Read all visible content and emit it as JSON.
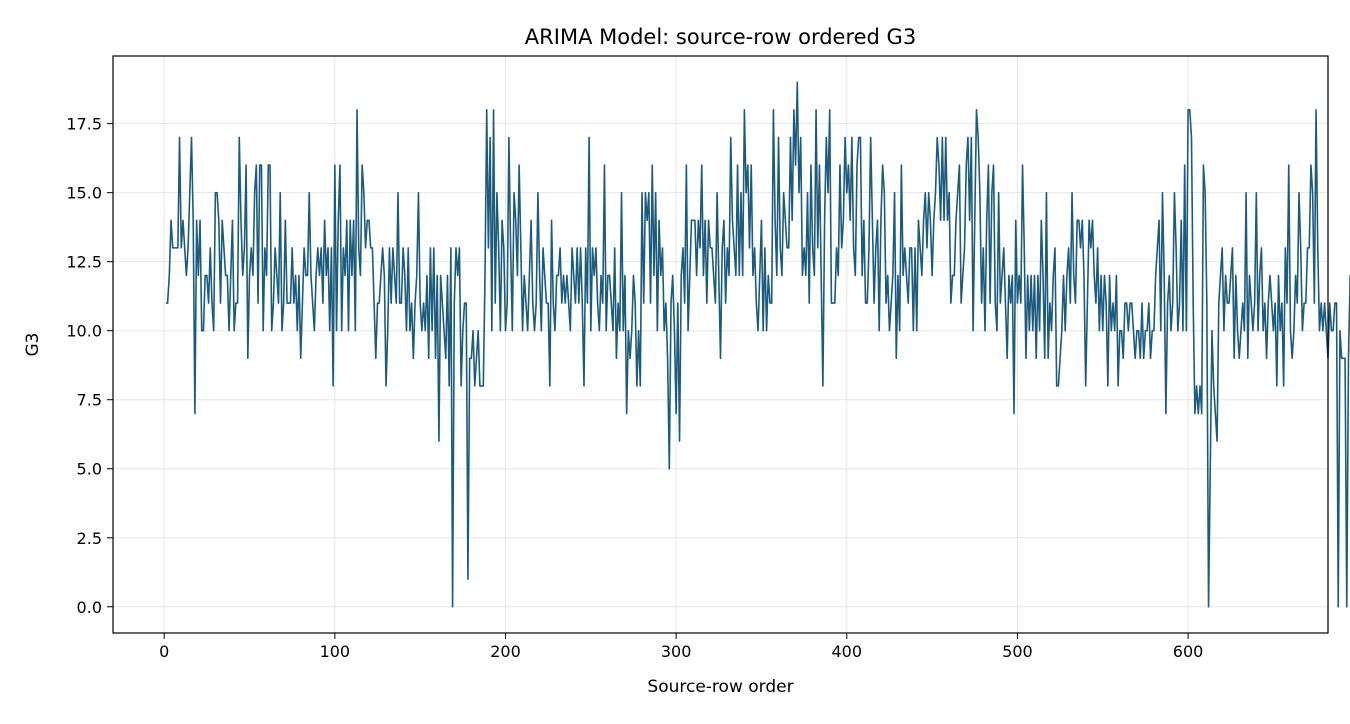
{
  "chart_data": {
    "type": "line",
    "title": "ARIMA Model: source-row ordered G3",
    "xlabel": "Source-row order",
    "ylabel": "G3",
    "xlim": [
      -30,
      682
    ],
    "ylim": [
      -0.95,
      19.95
    ],
    "xticks": [
      0,
      100,
      200,
      300,
      400,
      500,
      600
    ],
    "xtick_labels": [
      "0",
      "100",
      "200",
      "300",
      "400",
      "500",
      "600"
    ],
    "yticks": [
      0,
      2.5,
      5,
      7.5,
      10,
      12.5,
      15,
      17.5
    ],
    "ytick_labels": [
      "0.0",
      "2.5",
      "5.0",
      "7.5",
      "10.0",
      "12.5",
      "15.0",
      "17.5"
    ],
    "grid": true,
    "legend": "none",
    "line_color": "#1b5b7e",
    "series": [
      {
        "x_start": 1,
        "x_step": 1,
        "values": [
          11,
          11,
          12,
          14,
          13,
          13,
          13,
          13,
          17,
          13,
          14,
          13,
          12,
          13,
          15,
          17,
          14,
          7,
          14,
          12,
          14,
          10,
          10,
          12,
          12,
          11,
          13,
          11,
          10,
          15,
          15,
          14,
          11,
          14,
          13,
          12,
          12,
          10,
          12,
          14,
          10,
          11,
          11,
          17,
          14,
          12,
          13,
          16,
          9,
          12,
          13,
          12,
          15,
          16,
          11,
          16,
          16,
          10,
          13,
          12,
          16,
          16,
          10,
          11,
          13,
          12,
          11,
          15,
          10,
          11,
          14,
          11,
          11,
          11,
          13,
          11,
          12,
          10,
          12,
          9,
          11,
          13,
          12,
          12,
          15,
          12,
          11,
          10,
          12,
          13,
          12,
          13,
          11,
          14,
          12,
          13,
          10,
          13,
          8,
          16,
          10,
          14,
          16,
          10,
          13,
          12,
          14,
          10,
          14,
          12,
          14,
          10,
          18,
          13,
          12,
          16,
          15,
          13,
          14,
          14,
          13,
          13,
          11,
          9,
          11,
          11,
          12,
          13,
          12,
          8,
          10,
          13,
          11,
          13,
          12,
          11,
          15,
          11,
          11,
          13,
          12,
          10,
          13,
          10,
          11,
          9,
          11,
          12,
          15,
          11,
          10,
          11,
          10,
          12,
          9,
          13,
          10,
          13,
          9,
          12,
          6,
          12,
          11,
          10,
          9,
          12,
          8,
          13,
          0,
          11,
          13,
          12,
          13,
          8,
          10,
          11,
          11,
          1,
          9,
          9,
          10,
          8,
          9,
          10,
          8,
          8,
          8,
          12,
          18,
          13,
          17,
          10,
          18,
          11,
          15,
          13,
          10,
          14,
          13,
          10,
          11,
          17,
          13,
          10,
          15,
          14,
          12,
          16,
          13,
          10,
          12,
          11,
          10,
          12,
          14,
          11,
          10,
          11,
          15,
          12,
          10,
          13,
          12,
          11,
          11,
          8,
          14,
          11,
          10,
          12,
          12,
          13,
          11,
          12,
          11,
          12,
          11,
          10,
          13,
          12,
          11,
          13,
          11,
          13,
          11,
          8,
          13,
          11,
          17,
          10,
          13,
          12,
          13,
          11,
          10,
          12,
          11,
          16,
          10,
          12,
          12,
          11,
          10,
          13,
          9,
          11,
          10,
          15,
          10,
          12,
          7,
          10,
          9,
          10,
          12,
          11,
          8,
          10,
          8,
          15,
          11,
          15,
          14,
          15,
          11,
          16,
          12,
          15,
          10,
          14,
          12,
          13,
          10,
          11,
          9,
          5,
          11,
          12,
          10,
          7,
          11,
          6,
          12,
          13,
          11,
          16,
          10,
          12,
          14,
          14,
          14,
          12,
          14,
          13,
          16,
          12,
          14,
          11,
          14,
          13,
          13,
          12,
          11,
          15,
          12,
          9,
          13,
          14,
          11,
          13,
          12,
          17,
          14,
          13,
          12,
          16,
          12,
          15,
          12,
          18,
          15,
          16,
          13,
          16,
          12,
          13,
          11,
          10,
          12,
          14,
          10,
          13,
          10,
          12,
          11,
          11,
          18,
          14,
          12,
          17,
          13,
          12,
          15,
          14,
          13,
          13,
          17,
          14,
          18,
          16,
          19,
          15,
          17,
          12,
          13,
          12,
          15,
          11,
          16,
          13,
          12,
          18,
          13,
          16,
          12,
          8,
          14,
          17,
          15,
          18,
          11,
          11,
          11,
          13,
          12,
          16,
          13,
          14,
          17,
          15,
          16,
          14,
          17,
          13,
          12,
          16,
          17,
          17,
          12,
          14,
          11,
          11,
          13,
          17,
          14,
          11,
          13,
          14,
          10,
          14,
          16,
          15,
          11,
          12,
          10,
          11,
          12,
          15,
          9,
          12,
          10,
          16,
          12,
          13,
          12,
          11,
          13,
          13,
          10,
          13,
          10,
          14,
          13,
          12,
          14,
          15,
          13,
          15,
          14,
          12,
          14,
          15,
          17,
          16,
          14,
          17,
          14,
          17,
          14,
          15,
          11,
          12,
          12,
          14,
          15,
          16,
          11,
          12,
          13,
          16,
          17,
          14,
          17,
          10,
          14,
          18,
          17,
          15,
          11,
          13,
          10,
          14,
          16,
          11,
          15,
          16,
          11,
          10,
          15,
          11,
          12,
          13,
          11,
          9,
          12,
          11,
          12,
          7,
          14,
          11,
          12,
          11,
          16,
          13,
          9,
          12,
          10,
          12,
          10,
          12,
          9,
          12,
          10,
          14,
          12,
          9,
          15,
          9,
          11,
          10,
          12,
          13,
          8,
          8,
          9,
          10,
          12,
          10,
          12,
          13,
          11,
          15,
          12,
          11,
          14,
          14,
          13,
          14,
          12,
          8,
          11,
          14,
          13,
          14,
          12,
          11,
          13,
          10,
          12,
          10,
          12,
          11,
          8,
          12,
          10,
          11,
          10,
          12,
          8,
          10,
          10,
          9,
          11,
          11,
          10,
          11,
          11,
          10,
          9,
          10,
          10,
          9,
          11,
          9,
          10,
          10,
          11,
          9,
          10,
          10,
          12,
          13,
          14,
          10,
          15,
          12,
          7,
          11,
          12,
          10,
          11,
          15,
          13,
          10,
          11,
          14,
          10,
          16,
          10,
          18,
          18,
          17,
          11,
          7,
          8,
          7,
          8,
          7,
          16,
          15,
          11,
          0,
          5,
          10,
          8,
          7,
          6,
          11,
          12,
          13,
          10,
          12,
          11,
          11,
          12,
          13,
          9,
          12,
          10,
          9,
          10,
          11,
          10,
          15,
          9,
          12,
          11,
          10,
          11,
          15,
          10,
          12,
          13,
          10,
          11,
          9,
          11,
          12,
          11,
          10,
          11,
          8,
          12,
          10,
          11,
          8,
          13,
          11,
          16,
          10,
          9,
          10,
          12,
          11,
          15,
          13,
          10,
          11,
          11,
          13,
          13,
          16,
          15,
          11,
          18,
          13,
          10,
          11,
          10,
          11,
          10,
          9,
          11,
          10,
          10,
          11,
          11,
          0,
          10,
          9,
          9,
          9,
          0,
          9,
          12,
          8,
          9,
          8,
          8,
          9,
          11,
          7,
          10,
          9,
          11,
          11,
          11,
          11,
          10,
          9,
          9,
          10,
          10,
          9,
          9,
          9,
          8,
          8,
          7,
          5,
          0,
          10,
          0,
          10,
          9,
          6,
          9,
          11,
          12,
          10,
          11,
          14,
          13,
          15,
          17,
          18,
          17,
          10,
          15,
          14,
          14,
          16,
          10,
          14,
          11,
          0,
          10,
          13,
          12,
          14,
          13,
          10,
          13,
          9,
          0,
          9,
          18,
          17,
          9,
          10,
          12,
          9,
          13,
          17,
          11,
          10,
          0,
          9,
          12,
          11,
          10,
          13,
          14,
          9,
          15,
          10,
          15,
          14,
          14,
          12,
          18,
          17,
          16,
          15,
          13,
          16,
          12,
          9,
          10,
          12,
          9,
          11,
          10,
          8,
          15,
          12,
          10,
          12,
          13,
          12,
          13,
          16,
          11,
          10,
          15,
          17,
          9,
          12,
          15,
          10,
          9,
          0,
          10,
          16,
          11,
          10,
          11,
          9,
          11,
          13,
          9,
          0,
          0,
          12,
          11,
          13,
          0,
          10,
          14,
          11,
          10,
          9,
          16,
          12,
          10,
          11,
          11,
          19,
          14,
          11,
          12,
          11,
          10,
          16,
          9,
          13,
          12,
          14,
          9,
          11,
          13,
          12,
          10,
          11,
          9,
          0,
          13,
          12,
          11,
          0,
          10,
          15,
          13,
          12,
          10,
          14,
          11,
          16,
          9,
          10,
          11,
          11,
          12,
          9
        ]
      }
    ]
  }
}
